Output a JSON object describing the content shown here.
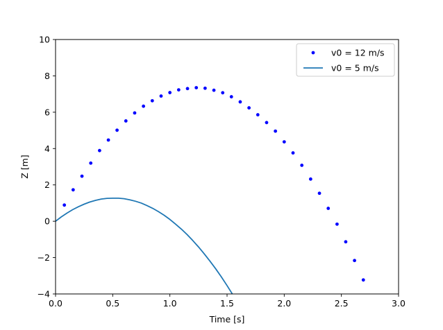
{
  "chart_data": {
    "type": "scatter",
    "xlabel": "Time [s]",
    "ylabel": "Z [m]",
    "xlim": [
      0.0,
      3.0
    ],
    "ylim": [
      -4,
      10
    ],
    "xticks": [
      0.0,
      0.5,
      1.0,
      1.5,
      2.0,
      2.5,
      3.0
    ],
    "xtick_labels": [
      "0.0",
      "0.5",
      "1.0",
      "1.5",
      "2.0",
      "2.5",
      "3.0"
    ],
    "yticks": [
      -4,
      -2,
      0,
      2,
      4,
      6,
      8,
      10
    ],
    "ytick_labels": [
      "−4",
      "−2",
      "0",
      "2",
      "4",
      "6",
      "8",
      "10"
    ],
    "grid": false,
    "legend_position": "top-right",
    "series": [
      {
        "name": "v0 = 12 m/s",
        "style": "dots",
        "color": "#0000ff",
        "x": [
          0.077,
          0.154,
          0.231,
          0.308,
          0.385,
          0.462,
          0.538,
          0.615,
          0.692,
          0.769,
          0.846,
          0.923,
          1.0,
          1.077,
          1.154,
          1.231,
          1.308,
          1.385,
          1.462,
          1.538,
          1.615,
          1.692,
          1.769,
          1.846,
          1.923,
          2.0,
          2.077,
          2.154,
          2.231,
          2.308,
          2.385,
          2.462,
          2.538,
          2.615,
          2.692
        ],
        "y": [
          0.89,
          1.73,
          2.48,
          3.2,
          3.89,
          4.47,
          5.01,
          5.52,
          5.96,
          6.33,
          6.63,
          6.89,
          7.08,
          7.23,
          7.3,
          7.35,
          7.32,
          7.21,
          7.07,
          6.85,
          6.57,
          6.24,
          5.86,
          5.43,
          4.96,
          4.37,
          3.76,
          3.08,
          2.32,
          1.54,
          0.71,
          -0.16,
          -1.13,
          -2.16,
          -3.23
        ]
      },
      {
        "name": "v0 = 5 m/s",
        "style": "line",
        "color": "#1f77b4",
        "x": [
          0.0,
          0.05,
          0.1,
          0.15,
          0.2,
          0.25,
          0.3,
          0.35,
          0.4,
          0.45,
          0.5,
          0.55,
          0.6,
          0.65,
          0.7,
          0.75,
          0.8,
          0.85,
          0.9,
          0.95,
          1.0,
          1.05,
          1.1,
          1.15,
          1.2,
          1.25,
          1.3,
          1.35,
          1.4,
          1.45,
          1.5,
          1.55
        ],
        "y": [
          0.0,
          0.24,
          0.45,
          0.64,
          0.8,
          0.94,
          1.06,
          1.15,
          1.22,
          1.26,
          1.27,
          1.27,
          1.24,
          1.18,
          1.1,
          1.0,
          0.86,
          0.71,
          0.53,
          0.33,
          0.1,
          -0.16,
          -0.43,
          -0.73,
          -1.06,
          -1.41,
          -1.79,
          -2.19,
          -2.61,
          -3.06,
          -3.54,
          -4.04
        ]
      }
    ]
  }
}
